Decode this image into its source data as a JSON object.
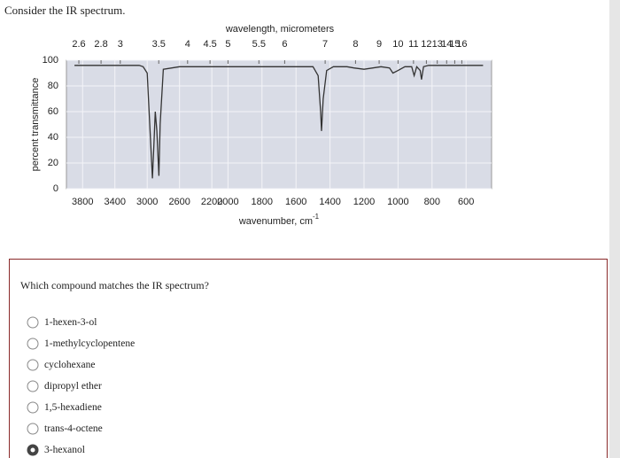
{
  "header": {
    "title": "Consider the IR spectrum."
  },
  "chart_data": {
    "type": "line",
    "x2label": "wavelength, micrometers",
    "ylabel": "percent transmittance",
    "xlabel": "wavenumber, cm",
    "xlabel_sup": "-1",
    "x": [
      3900,
      3700,
      3500,
      3300,
      3100,
      3050,
      3000,
      2960,
      2935,
      2920,
      2900,
      2880,
      2855,
      2840,
      2800,
      2600,
      2400,
      2200,
      2000,
      1800,
      1600,
      1500,
      1470,
      1455,
      1450,
      1440,
      1420,
      1380,
      1300,
      1260,
      1200,
      1100,
      1050,
      1030,
      1000,
      960,
      920,
      905,
      890,
      870,
      862,
      850,
      820,
      780,
      700,
      600,
      500
    ],
    "series": [
      {
        "color": "#333333",
        "values": [
          96,
          96,
          96,
          96,
          96,
          95,
          90,
          40,
          8,
          30,
          60,
          45,
          10,
          50,
          93,
          95,
          95,
          95,
          95,
          95,
          95,
          95,
          88,
          60,
          45,
          70,
          92,
          95,
          95,
          94,
          93,
          95,
          94,
          90,
          92,
          95,
          95,
          88,
          95,
          92,
          85,
          95,
          96,
          96,
          96,
          96,
          96
        ]
      }
    ],
    "xlim": [
      4000,
      450
    ],
    "xbreak": 2000,
    "xticks": [
      3800,
      3400,
      3000,
      2600,
      2200,
      2000,
      1800,
      1600,
      1400,
      1200,
      1000,
      800,
      600
    ],
    "x2ticks": [
      2.6,
      2.8,
      3,
      3.5,
      4,
      4.5,
      5,
      5.5,
      6,
      7,
      8,
      9,
      10,
      11,
      12,
      13,
      14,
      15,
      16
    ],
    "ylim": [
      0,
      100
    ],
    "yticks": [
      0,
      20,
      40,
      60,
      80,
      100
    ],
    "grid": true
  },
  "question": {
    "text": "Which compound matches the IR spectrum?",
    "options": [
      "1-hexen-3-ol",
      "1-methylcyclopentene",
      "cyclohexane",
      "dipropyl ether",
      "1,5-hexadiene",
      "trans-4-octene",
      "3-hexanol"
    ],
    "selected": 6
  }
}
